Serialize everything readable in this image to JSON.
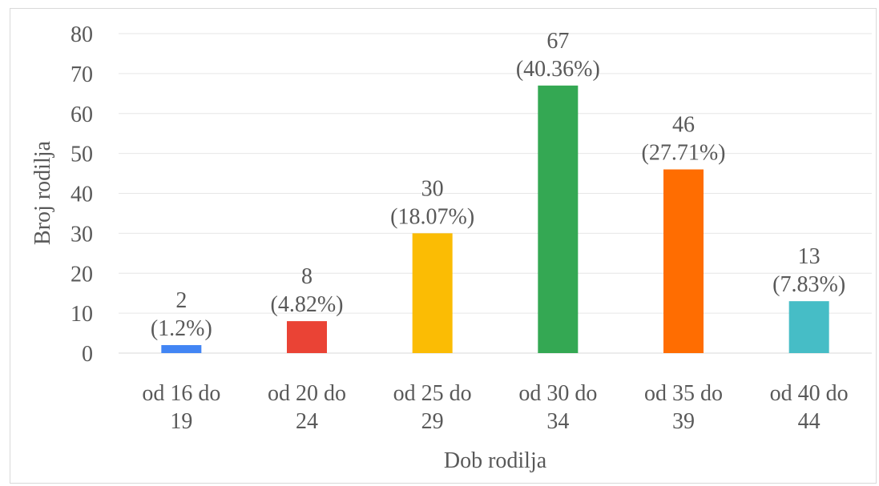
{
  "chart_data": {
    "type": "bar",
    "title": "",
    "xlabel": "Dob rodilja",
    "ylabel": "Broj rodilja",
    "ylim": [
      0,
      80
    ],
    "yticks": [
      0,
      10,
      20,
      30,
      40,
      50,
      60,
      70,
      80
    ],
    "grid": true,
    "legend": "none",
    "categories": [
      [
        "od 16 do",
        "19"
      ],
      [
        "od 20 do",
        "24"
      ],
      [
        "od 25 do",
        "29"
      ],
      [
        "od 30 do",
        "34"
      ],
      [
        "od 35 do",
        "39"
      ],
      [
        "od 40 do",
        "44"
      ]
    ],
    "values": [
      2,
      8,
      30,
      67,
      46,
      13
    ],
    "data_labels": [
      [
        "2",
        "(1.2%)"
      ],
      [
        "8",
        "(4.82%)"
      ],
      [
        "30",
        "(18.07%)"
      ],
      [
        "67",
        "(40.36%)"
      ],
      [
        "46",
        "(27.71%)"
      ],
      [
        "13",
        "(7.83%)"
      ]
    ],
    "colors": [
      "#4285f4",
      "#ea4335",
      "#fbbc04",
      "#34a853",
      "#ff6d01",
      "#46bdc6"
    ]
  }
}
